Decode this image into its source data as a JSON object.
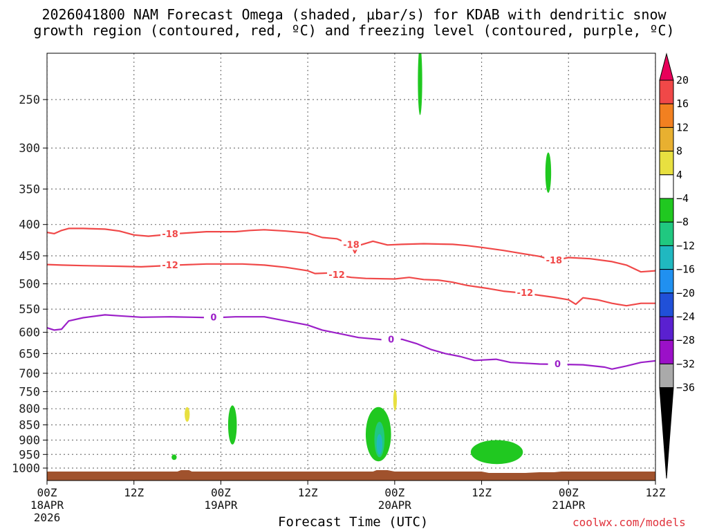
{
  "title_line1": "2026041800 NAM Forecast Omega (shaded, μbar/s) for KDAB with dendritic snow",
  "title_line2": "growth region (contoured, red, ºC) and freezing level (contoured, purple, ºC)",
  "xaxis_title": "Forecast Time (UTC)",
  "credit": "coolwx.com/models",
  "colors": {
    "dgz": "#f04848",
    "freezing": "#9b1fc8",
    "terrain": "#a0522d",
    "grid": "#777777"
  },
  "chart_data": {
    "type": "time-height cross section",
    "yaxis": {
      "scale": "log-pressure (mb)",
      "range": [
        1050,
        200
      ],
      "ticks": [
        "250",
        "300",
        "350",
        "400",
        "450",
        "500",
        "550",
        "600",
        "650",
        "700",
        "750",
        "800",
        "850",
        "900",
        "950",
        "1000"
      ]
    },
    "xaxis": {
      "range_hours": [
        0,
        84
      ],
      "ticks": [
        {
          "h": 0,
          "label": "00Z",
          "sub": "18APR",
          "sub2": "2026"
        },
        {
          "h": 12,
          "label": "12Z",
          "sub": "",
          "sub2": ""
        },
        {
          "h": 24,
          "label": "00Z",
          "sub": "19APR",
          "sub2": ""
        },
        {
          "h": 36,
          "label": "12Z",
          "sub": "",
          "sub2": ""
        },
        {
          "h": 48,
          "label": "00Z",
          "sub": "20APR",
          "sub2": ""
        },
        {
          "h": 60,
          "label": "12Z",
          "sub": "",
          "sub2": ""
        },
        {
          "h": 72,
          "label": "00Z",
          "sub": "21APR",
          "sub2": ""
        },
        {
          "h": 84,
          "label": "12Z",
          "sub": "",
          "sub2": ""
        }
      ]
    },
    "colorbar": {
      "levels": [
        "20",
        "16",
        "12",
        "8",
        "4",
        "−4",
        "−8",
        "−12",
        "−16",
        "−20",
        "−24",
        "−28",
        "−32",
        "−36"
      ],
      "colors": [
        "#e8005a",
        "#f04848",
        "#f28020",
        "#e8b030",
        "#e8e040",
        "#ffffff",
        "#20c820",
        "#20c880",
        "#20b8c0",
        "#2090f0",
        "#2050d8",
        "#5a20d0",
        "#9b10c8",
        "#aaaaaa",
        "#000000"
      ]
    },
    "contours": [
      {
        "name": "-18",
        "color": "#f04848",
        "label_positions_h": [
          17,
          42,
          70
        ],
        "points": [
          [
            0,
            412
          ],
          [
            1,
            414
          ],
          [
            2,
            409
          ],
          [
            3,
            406
          ],
          [
            5,
            406
          ],
          [
            8,
            407
          ],
          [
            10,
            410
          ],
          [
            12,
            416
          ],
          [
            14,
            418
          ],
          [
            18,
            414
          ],
          [
            22,
            411
          ],
          [
            26,
            411
          ],
          [
            28,
            409
          ],
          [
            30,
            408
          ],
          [
            33,
            410
          ],
          [
            36,
            413
          ],
          [
            38,
            420
          ],
          [
            40,
            422
          ],
          [
            42,
            432
          ],
          [
            42.5,
            445
          ],
          [
            43,
            433
          ],
          [
            45,
            426
          ],
          [
            47,
            432
          ],
          [
            49,
            431
          ],
          [
            52,
            430
          ],
          [
            56,
            431
          ],
          [
            58,
            433
          ],
          [
            60,
            436
          ],
          [
            63,
            441
          ],
          [
            66,
            447
          ],
          [
            68,
            451
          ],
          [
            70,
            458
          ],
          [
            72,
            453
          ],
          [
            75,
            455
          ],
          [
            78,
            460
          ],
          [
            80,
            466
          ],
          [
            82,
            478
          ],
          [
            84,
            476
          ]
        ]
      },
      {
        "name": "-12",
        "color": "#f04848",
        "label_positions_h": [
          17,
          40,
          66
        ],
        "points": [
          [
            0,
            465
          ],
          [
            2,
            466
          ],
          [
            5,
            467
          ],
          [
            10,
            468
          ],
          [
            13,
            469
          ],
          [
            18,
            466
          ],
          [
            22,
            464
          ],
          [
            27,
            464
          ],
          [
            30,
            466
          ],
          [
            33,
            470
          ],
          [
            36,
            476
          ],
          [
            37,
            481
          ],
          [
            39,
            480
          ],
          [
            40,
            484
          ],
          [
            42,
            488
          ],
          [
            44,
            490
          ],
          [
            48,
            491
          ],
          [
            50,
            488
          ],
          [
            52,
            492
          ],
          [
            54,
            493
          ],
          [
            56,
            497
          ],
          [
            58,
            503
          ],
          [
            61,
            509
          ],
          [
            63,
            514
          ],
          [
            66,
            518
          ],
          [
            68,
            522
          ],
          [
            70,
            526
          ],
          [
            72,
            531
          ],
          [
            73,
            540
          ],
          [
            74,
            527
          ],
          [
            76,
            531
          ],
          [
            78,
            538
          ],
          [
            80,
            543
          ],
          [
            82,
            538
          ],
          [
            84,
            538
          ]
        ]
      },
      {
        "name": "0",
        "color": "#9b1fc8",
        "label_positions_h": [
          23,
          47.5,
          70.5
        ],
        "points": [
          [
            0,
            590
          ],
          [
            1,
            595
          ],
          [
            2,
            593
          ],
          [
            3,
            575
          ],
          [
            5,
            568
          ],
          [
            8,
            562
          ],
          [
            10,
            564
          ],
          [
            13,
            567
          ],
          [
            17,
            566
          ],
          [
            20,
            567
          ],
          [
            23,
            568
          ],
          [
            26,
            566
          ],
          [
            30,
            566
          ],
          [
            33,
            575
          ],
          [
            36,
            584
          ],
          [
            38,
            595
          ],
          [
            41,
            605
          ],
          [
            43,
            612
          ],
          [
            47,
            618
          ],
          [
            49,
            616
          ],
          [
            51,
            626
          ],
          [
            53,
            640
          ],
          [
            55,
            650
          ],
          [
            57,
            657
          ],
          [
            59,
            667
          ],
          [
            62,
            664
          ],
          [
            64,
            672
          ],
          [
            66,
            674
          ],
          [
            68,
            676
          ],
          [
            71,
            677
          ],
          [
            74,
            678
          ],
          [
            77,
            684
          ],
          [
            78,
            689
          ],
          [
            80,
            681
          ],
          [
            82,
            672
          ],
          [
            84,
            668
          ]
        ]
      }
    ],
    "omega_regions": [
      {
        "bin": "4..8",
        "color": "#e8e040",
        "h": [
          19.0,
          19.7
        ],
        "p": [
          795,
          840
        ]
      },
      {
        "bin": "-4..-8",
        "color": "#20c820",
        "h": [
          17.2,
          17.9
        ],
        "p": [
          950,
          970
        ]
      },
      {
        "bin": "-4..-8",
        "color": "#20c820",
        "h": [
          25.0,
          26.2
        ],
        "p": [
          790,
          915
        ]
      },
      {
        "bin": "-4..-8",
        "color": "#20c820",
        "h": [
          44.0,
          47.5
        ],
        "p": [
          795,
          975
        ]
      },
      {
        "bin": "-8..-12",
        "color": "#20c880",
        "h": [
          45.2,
          46.6
        ],
        "p": [
          840,
          960
        ]
      },
      {
        "bin": "-12..-16",
        "color": "#20b8c0",
        "h": [
          45.5,
          46.3
        ],
        "p": [
          880,
          950
        ]
      },
      {
        "bin": "4..8",
        "color": "#e8e040",
        "h": [
          47.8,
          48.3
        ],
        "p": [
          745,
          805
        ]
      },
      {
        "bin": "-4..-8",
        "color": "#20c820",
        "h": [
          51.2,
          51.8
        ],
        "p": [
          205,
          265
        ]
      },
      {
        "bin": "-4..-8",
        "color": "#20c820",
        "h": [
          68.8,
          69.6
        ],
        "p": [
          305,
          355
        ]
      },
      {
        "bin": "-4..-8",
        "color": "#20c820",
        "h": [
          58.5,
          65.7
        ],
        "p": [
          900,
          985
        ]
      }
    ]
  }
}
